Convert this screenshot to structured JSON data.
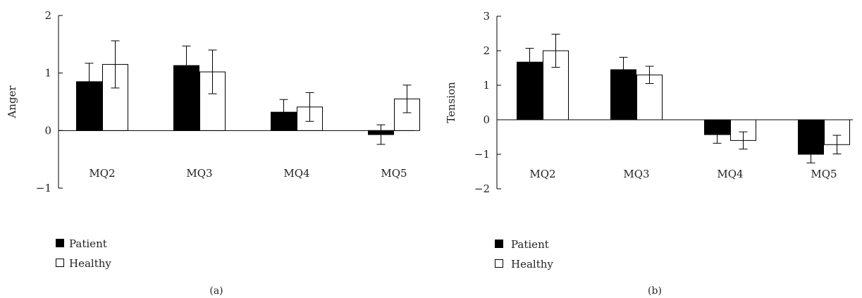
{
  "legend": {
    "patient_label": "Patient",
    "healthy_label": "Healthy",
    "patient_color": "#000000",
    "healthy_color": "#ffffff",
    "placement": "bottom-left"
  },
  "chart_data": [
    {
      "type": "bar",
      "panel_label": "(a)",
      "ylabel": "Anger",
      "xlabel": "",
      "ylim": [
        -1,
        2
      ],
      "yticks": [
        -1,
        0,
        1,
        2
      ],
      "grid": false,
      "categories": [
        "MQ2",
        "MQ3",
        "MQ4",
        "MQ5"
      ],
      "series": [
        {
          "name": "Patient",
          "color": "#000000",
          "values": [
            0.85,
            1.13,
            0.32,
            -0.07
          ],
          "errors": [
            0.32,
            0.34,
            0.22,
            0.17
          ]
        },
        {
          "name": "Healthy",
          "color": "#ffffff",
          "values": [
            1.15,
            1.02,
            0.41,
            0.55
          ],
          "errors": [
            0.41,
            0.38,
            0.25,
            0.24
          ]
        }
      ]
    },
    {
      "type": "bar",
      "panel_label": "(b)",
      "ylabel": "Tension",
      "xlabel": "",
      "ylim": [
        -2,
        3
      ],
      "yticks": [
        -2,
        -1,
        0,
        1,
        2,
        3
      ],
      "grid": false,
      "categories": [
        "MQ2",
        "MQ3",
        "MQ4",
        "MQ5"
      ],
      "series": [
        {
          "name": "Patient",
          "color": "#000000",
          "values": [
            1.67,
            1.45,
            -0.43,
            -1.0
          ],
          "errors": [
            0.4,
            0.36,
            0.25,
            0.25
          ]
        },
        {
          "name": "Healthy",
          "color": "#ffffff",
          "values": [
            2.0,
            1.3,
            -0.6,
            -0.72
          ],
          "errors": [
            0.48,
            0.25,
            0.25,
            0.27
          ]
        }
      ]
    }
  ]
}
